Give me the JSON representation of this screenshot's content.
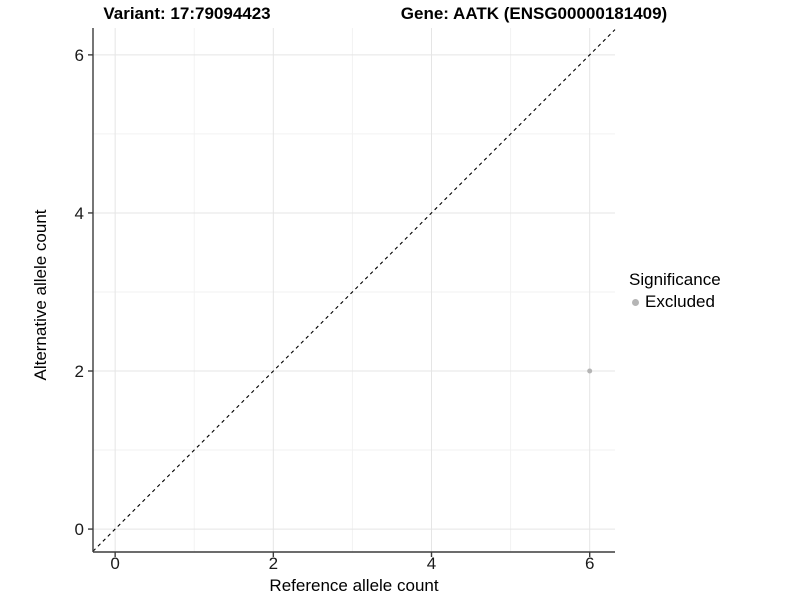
{
  "chart_data": {
    "type": "scatter",
    "titles": {
      "left": "Variant: 17:79094423",
      "right": "Gene: AATK (ENSG00000181409)"
    },
    "xlabel": "Reference allele count",
    "ylabel": "Alternative allele count",
    "xlim": [
      -0.28,
      6.32
    ],
    "ylim": [
      -0.29,
      6.34
    ],
    "x_major_ticks": [
      0,
      2,
      4,
      6
    ],
    "x_minor_ticks": [
      1,
      3,
      5
    ],
    "y_major_ticks": [
      0,
      2,
      4,
      6
    ],
    "y_minor_ticks": [
      1,
      3,
      5
    ],
    "grid": true,
    "identity_line": {
      "equation": "y = x",
      "style": "dashed",
      "color": "#000000"
    },
    "points": [
      {
        "x": 6,
        "y": 2,
        "significance": "Excluded"
      }
    ],
    "legend": {
      "title": "Significance",
      "position": "right",
      "entries": [
        {
          "label": "Excluded",
          "color": "#b5b5b5",
          "marker": "circle"
        }
      ]
    },
    "colors": {
      "background": "#ffffff",
      "grid_major": "#e5e5e5",
      "grid_minor": "#f2f2f2",
      "axis": "#3c3c3c",
      "tick_text": "#1a1a1a",
      "point": "#b5b5b5"
    }
  }
}
